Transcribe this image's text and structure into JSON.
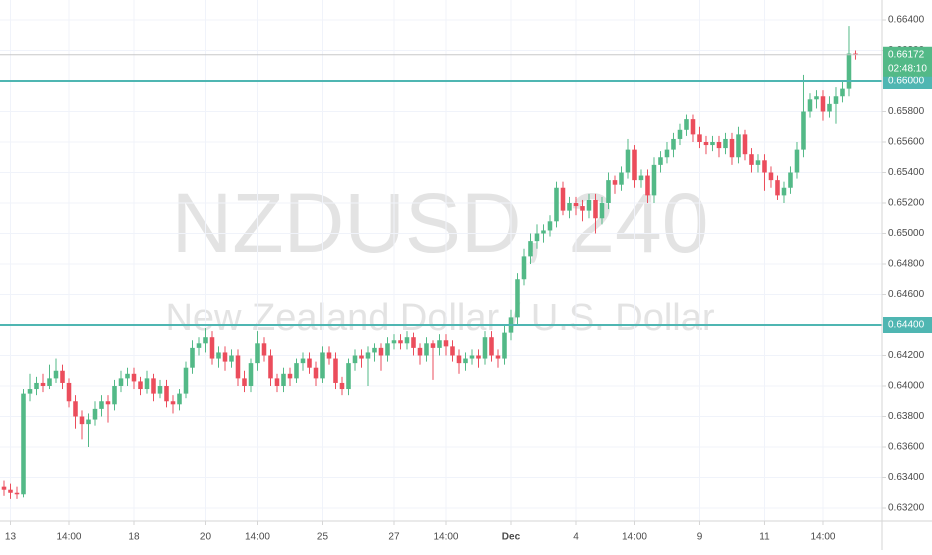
{
  "chart_data": {
    "type": "candlestick",
    "watermark": {
      "symbol": "NZDUSD, 240",
      "description": "New Zealand Dollar / U.S. Dollar"
    },
    "up_color": "#53b987",
    "down_color": "#eb4d5c",
    "grid": true,
    "ylim": [
      0.632,
      0.664
    ],
    "yticks": [
      {
        "value": 0.632,
        "label": "0.63200"
      },
      {
        "value": 0.634,
        "label": "0.63400"
      },
      {
        "value": 0.636,
        "label": "0.63600"
      },
      {
        "value": 0.638,
        "label": "0.63800"
      },
      {
        "value": 0.64,
        "label": "0.64000"
      },
      {
        "value": 0.642,
        "label": "0.64200"
      },
      {
        "value": 0.644,
        "label": "0.64400"
      },
      {
        "value": 0.646,
        "label": "0.64600"
      },
      {
        "value": 0.648,
        "label": "0.64800"
      },
      {
        "value": 0.65,
        "label": "0.65000"
      },
      {
        "value": 0.652,
        "label": "0.65200"
      },
      {
        "value": 0.654,
        "label": "0.65400"
      },
      {
        "value": 0.656,
        "label": "0.65600"
      },
      {
        "value": 0.658,
        "label": "0.65800"
      },
      {
        "value": 0.66,
        "label": "0.66000"
      },
      {
        "value": 0.662,
        "label": "0.66200"
      },
      {
        "value": 0.664,
        "label": "0.66400"
      }
    ],
    "xlim": [
      -0.615,
      135.08
    ],
    "xticks": [
      {
        "value": 1,
        "label": "13"
      },
      {
        "value": 10,
        "label": "14:00"
      },
      {
        "value": 20,
        "label": "18"
      },
      {
        "value": 31,
        "label": "20"
      },
      {
        "value": 39,
        "label": "14:00"
      },
      {
        "value": 49,
        "label": "25"
      },
      {
        "value": 60,
        "label": "27"
      },
      {
        "value": 68,
        "label": "14:00"
      },
      {
        "value": 78,
        "label": "Dec"
      },
      {
        "value": 88,
        "label": "4"
      },
      {
        "value": 97,
        "label": "14:00"
      },
      {
        "value": 107,
        "label": "9"
      },
      {
        "value": 117,
        "label": "11"
      },
      {
        "value": 126,
        "label": "14:00"
      }
    ],
    "hlines": [
      {
        "value": 0.66,
        "label": "0.66000",
        "color": "#4fb6b2"
      },
      {
        "value": 0.644,
        "label": "0.64400",
        "color": "#4fb6b2"
      }
    ],
    "last_price": {
      "value": 0.66172,
      "label": "0.66172",
      "color": "#53b987"
    },
    "countdown": "02:48:10",
    "candles": [
      [
        0.6334,
        0.6338,
        0.6328,
        0.6332
      ],
      [
        0.6332,
        0.6336,
        0.6326,
        0.633
      ],
      [
        0.633,
        0.6334,
        0.6326,
        0.6329
      ],
      [
        0.6329,
        0.6398,
        0.6327,
        0.6395
      ],
      [
        0.6395,
        0.6408,
        0.639,
        0.6398
      ],
      [
        0.6398,
        0.6406,
        0.6394,
        0.6402
      ],
      [
        0.6402,
        0.6408,
        0.6396,
        0.64
      ],
      [
        0.64,
        0.6414,
        0.6398,
        0.6405
      ],
      [
        0.6405,
        0.6418,
        0.6402,
        0.641
      ],
      [
        0.641,
        0.6414,
        0.6398,
        0.6402
      ],
      [
        0.6402,
        0.6405,
        0.6386,
        0.639
      ],
      [
        0.639,
        0.6394,
        0.6372,
        0.638
      ],
      [
        0.638,
        0.6384,
        0.6365,
        0.6375
      ],
      [
        0.6375,
        0.6382,
        0.636,
        0.6378
      ],
      [
        0.6378,
        0.639,
        0.6374,
        0.6385
      ],
      [
        0.6385,
        0.6394,
        0.638,
        0.639
      ],
      [
        0.639,
        0.6394,
        0.6376,
        0.6388
      ],
      [
        0.6388,
        0.6404,
        0.6384,
        0.64
      ],
      [
        0.64,
        0.641,
        0.6396,
        0.6405
      ],
      [
        0.6405,
        0.6412,
        0.64,
        0.6408
      ],
      [
        0.6408,
        0.6412,
        0.6398,
        0.6403
      ],
      [
        0.6403,
        0.6406,
        0.6394,
        0.6398
      ],
      [
        0.6398,
        0.641,
        0.6395,
        0.6405
      ],
      [
        0.6405,
        0.6408,
        0.639,
        0.6395
      ],
      [
        0.6395,
        0.6404,
        0.6392,
        0.64
      ],
      [
        0.64,
        0.6404,
        0.6386,
        0.639
      ],
      [
        0.639,
        0.6394,
        0.6382,
        0.6388
      ],
      [
        0.6388,
        0.6398,
        0.6384,
        0.6395
      ],
      [
        0.6395,
        0.6416,
        0.6392,
        0.6412
      ],
      [
        0.6412,
        0.643,
        0.6408,
        0.6425
      ],
      [
        0.6425,
        0.6432,
        0.642,
        0.6428
      ],
      [
        0.6428,
        0.6438,
        0.6422,
        0.6432
      ],
      [
        0.6432,
        0.6436,
        0.6414,
        0.6418
      ],
      [
        0.6418,
        0.6426,
        0.6412,
        0.6422
      ],
      [
        0.6422,
        0.6426,
        0.641,
        0.6416
      ],
      [
        0.6416,
        0.6424,
        0.6412,
        0.642
      ],
      [
        0.642,
        0.6424,
        0.64,
        0.6405
      ],
      [
        0.6405,
        0.641,
        0.6396,
        0.64
      ],
      [
        0.64,
        0.6418,
        0.6396,
        0.6415
      ],
      [
        0.6415,
        0.6436,
        0.641,
        0.6428
      ],
      [
        0.6428,
        0.6432,
        0.6416,
        0.642
      ],
      [
        0.642,
        0.6424,
        0.64,
        0.6405
      ],
      [
        0.6405,
        0.6408,
        0.6396,
        0.64
      ],
      [
        0.64,
        0.6412,
        0.6396,
        0.6408
      ],
      [
        0.6408,
        0.6412,
        0.64,
        0.6405
      ],
      [
        0.6405,
        0.6418,
        0.6402,
        0.6415
      ],
      [
        0.6415,
        0.6422,
        0.641,
        0.6418
      ],
      [
        0.6418,
        0.6422,
        0.6408,
        0.6412
      ],
      [
        0.6412,
        0.6416,
        0.64,
        0.6405
      ],
      [
        0.6405,
        0.6426,
        0.6402,
        0.6422
      ],
      [
        0.6422,
        0.6426,
        0.6414,
        0.6418
      ],
      [
        0.6418,
        0.6422,
        0.6398,
        0.6402
      ],
      [
        0.6402,
        0.6406,
        0.6394,
        0.6398
      ],
      [
        0.6398,
        0.6418,
        0.6394,
        0.6415
      ],
      [
        0.6415,
        0.6424,
        0.641,
        0.642
      ],
      [
        0.642,
        0.6424,
        0.6412,
        0.6418
      ],
      [
        0.6418,
        0.6426,
        0.64,
        0.6422
      ],
      [
        0.6422,
        0.6428,
        0.6416,
        0.6425
      ],
      [
        0.6425,
        0.6428,
        0.641,
        0.642
      ],
      [
        0.642,
        0.6432,
        0.6416,
        0.6428
      ],
      [
        0.6428,
        0.6434,
        0.6424,
        0.643
      ],
      [
        0.643,
        0.6434,
        0.6424,
        0.6428
      ],
      [
        0.6428,
        0.6436,
        0.6424,
        0.6432
      ],
      [
        0.6432,
        0.6435,
        0.642,
        0.6425
      ],
      [
        0.6425,
        0.6428,
        0.6414,
        0.642
      ],
      [
        0.642,
        0.6432,
        0.6416,
        0.6428
      ],
      [
        0.6428,
        0.643,
        0.6404,
        0.6425
      ],
      [
        0.6425,
        0.6434,
        0.642,
        0.643
      ],
      [
        0.643,
        0.6434,
        0.642,
        0.6426
      ],
      [
        0.6426,
        0.643,
        0.6416,
        0.642
      ],
      [
        0.642,
        0.6424,
        0.6408,
        0.6415
      ],
      [
        0.6415,
        0.6422,
        0.641,
        0.6418
      ],
      [
        0.6418,
        0.6424,
        0.6414,
        0.642
      ],
      [
        0.642,
        0.6424,
        0.6412,
        0.6418
      ],
      [
        0.6418,
        0.6436,
        0.6414,
        0.6432
      ],
      [
        0.6432,
        0.6436,
        0.6416,
        0.642
      ],
      [
        0.642,
        0.6424,
        0.6412,
        0.6418
      ],
      [
        0.6418,
        0.644,
        0.6414,
        0.6435
      ],
      [
        0.6435,
        0.645,
        0.643,
        0.6445
      ],
      [
        0.6445,
        0.6474,
        0.644,
        0.647
      ],
      [
        0.647,
        0.649,
        0.6466,
        0.6485
      ],
      [
        0.6485,
        0.65,
        0.648,
        0.6495
      ],
      [
        0.6495,
        0.6506,
        0.649,
        0.65
      ],
      [
        0.65,
        0.6506,
        0.6494,
        0.6502
      ],
      [
        0.6502,
        0.6512,
        0.6498,
        0.6508
      ],
      [
        0.6508,
        0.6534,
        0.6504,
        0.653
      ],
      [
        0.653,
        0.6534,
        0.6512,
        0.6515
      ],
      [
        0.6515,
        0.6524,
        0.651,
        0.652
      ],
      [
        0.652,
        0.6524,
        0.6512,
        0.6518
      ],
      [
        0.6518,
        0.6522,
        0.6508,
        0.6515
      ],
      [
        0.6515,
        0.6526,
        0.651,
        0.6522
      ],
      [
        0.6522,
        0.6526,
        0.65,
        0.651
      ],
      [
        0.651,
        0.6524,
        0.6506,
        0.652
      ],
      [
        0.652,
        0.654,
        0.6516,
        0.6535
      ],
      [
        0.6535,
        0.6538,
        0.6526,
        0.6532
      ],
      [
        0.6532,
        0.6544,
        0.6528,
        0.654
      ],
      [
        0.654,
        0.6562,
        0.6536,
        0.6555
      ],
      [
        0.6555,
        0.6558,
        0.653,
        0.6535
      ],
      [
        0.6535,
        0.6542,
        0.653,
        0.6538
      ],
      [
        0.6538,
        0.6542,
        0.652,
        0.6525
      ],
      [
        0.6525,
        0.655,
        0.652,
        0.6545
      ],
      [
        0.6545,
        0.6554,
        0.654,
        0.655
      ],
      [
        0.655,
        0.656,
        0.6546,
        0.6555
      ],
      [
        0.6555,
        0.6566,
        0.655,
        0.6562
      ],
      [
        0.6562,
        0.6572,
        0.6558,
        0.6568
      ],
      [
        0.6568,
        0.6578,
        0.6564,
        0.6575
      ],
      [
        0.6575,
        0.6578,
        0.656,
        0.6565
      ],
      [
        0.6565,
        0.657,
        0.6556,
        0.656
      ],
      [
        0.656,
        0.6564,
        0.6552,
        0.6558
      ],
      [
        0.6558,
        0.6564,
        0.6554,
        0.656
      ],
      [
        0.656,
        0.6564,
        0.655,
        0.6556
      ],
      [
        0.6556,
        0.6566,
        0.6552,
        0.6562
      ],
      [
        0.6562,
        0.6566,
        0.6545,
        0.655
      ],
      [
        0.655,
        0.657,
        0.6546,
        0.6565
      ],
      [
        0.6565,
        0.6568,
        0.6548,
        0.6552
      ],
      [
        0.6552,
        0.6556,
        0.654,
        0.6545
      ],
      [
        0.6545,
        0.6552,
        0.654,
        0.6548
      ],
      [
        0.6548,
        0.6552,
        0.6528,
        0.654
      ],
      [
        0.654,
        0.6544,
        0.653,
        0.6535
      ],
      [
        0.6535,
        0.6538,
        0.6522,
        0.6525
      ],
      [
        0.6525,
        0.6534,
        0.652,
        0.653
      ],
      [
        0.653,
        0.6544,
        0.6526,
        0.654
      ],
      [
        0.654,
        0.656,
        0.6536,
        0.6555
      ],
      [
        0.6555,
        0.6604,
        0.655,
        0.658
      ],
      [
        0.658,
        0.6592,
        0.6576,
        0.6588
      ],
      [
        0.6588,
        0.6594,
        0.6582,
        0.659
      ],
      [
        0.659,
        0.6594,
        0.6574,
        0.658
      ],
      [
        0.658,
        0.659,
        0.6576,
        0.6585
      ],
      [
        0.6585,
        0.6596,
        0.6572,
        0.659
      ],
      [
        0.659,
        0.66,
        0.6586,
        0.6595
      ],
      [
        0.6595,
        0.6636,
        0.659,
        0.6618
      ],
      [
        0.6618,
        0.662,
        0.6614,
        0.66172
      ]
    ]
  }
}
